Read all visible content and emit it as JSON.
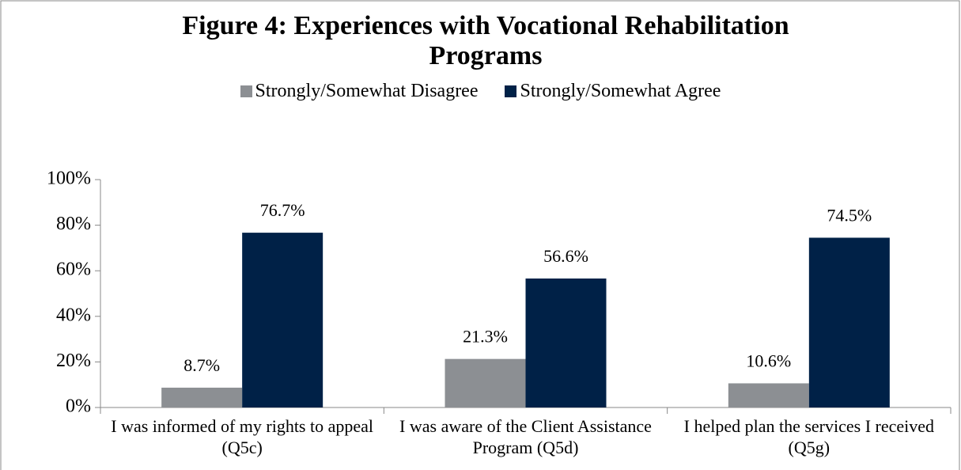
{
  "chart_data": {
    "type": "bar",
    "title": "Figure 4: Experiences with Vocational Rehabilitation Programs",
    "categories": [
      "I was informed of my rights to appeal (Q5c)",
      "I was aware of the Client Assistance Program (Q5d)",
      "I helped plan the services I received (Q5g)"
    ],
    "series": [
      {
        "name": "Strongly/Somewhat Disagree",
        "color": "#8c8f93",
        "values": [
          8.7,
          21.3,
          10.6
        ],
        "value_labels": [
          "8.7%",
          "21.3%",
          "10.6%"
        ]
      },
      {
        "name": "Strongly/Somewhat Agree",
        "color": "#002147",
        "values": [
          76.7,
          56.6,
          74.5
        ],
        "value_labels": [
          "76.7%",
          "56.6%",
          "74.5%"
        ]
      }
    ],
    "ylim": [
      0,
      100
    ],
    "yticks": [
      {
        "value": 0,
        "label": "0%"
      },
      {
        "value": 20,
        "label": "20%"
      },
      {
        "value": 40,
        "label": "40%"
      },
      {
        "value": 60,
        "label": "60%"
      },
      {
        "value": 80,
        "label": "80%"
      },
      {
        "value": 100,
        "label": "100%"
      }
    ],
    "legend": "top",
    "grid": false
  }
}
